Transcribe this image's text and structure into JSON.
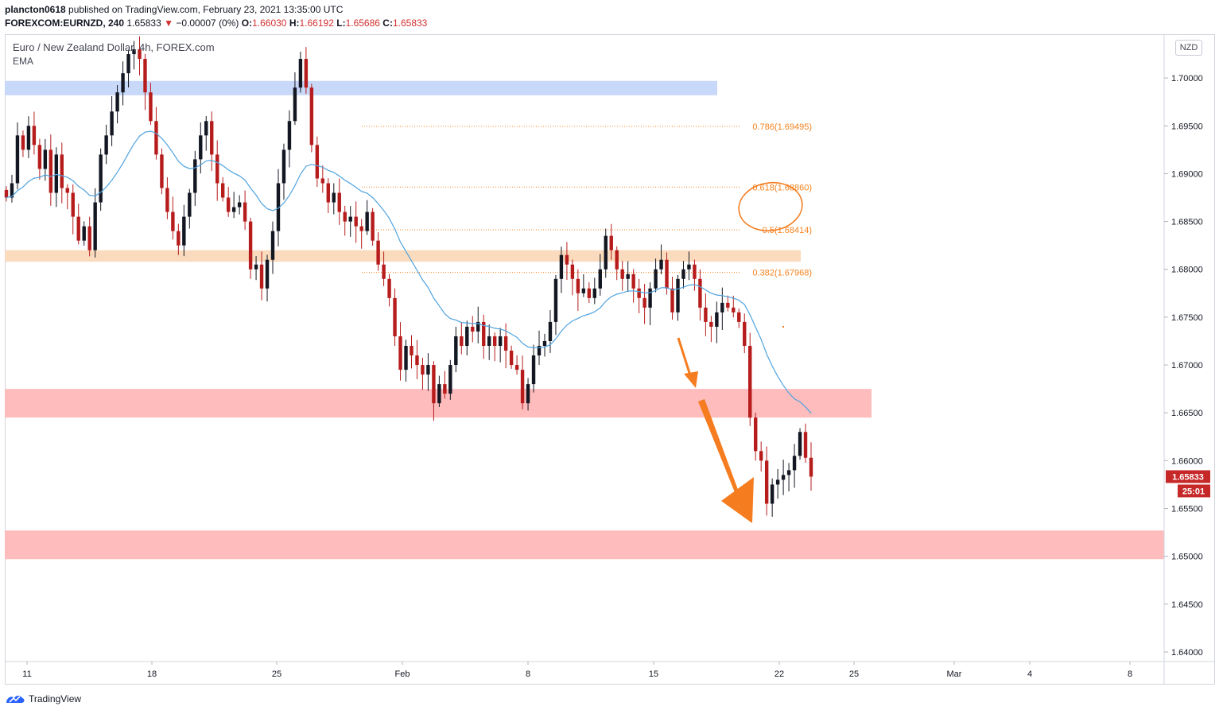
{
  "header": {
    "user": "plancton0618",
    "published": "published on TradingView.com, February 23, 2021 13:35:00 UTC",
    "symbol": "FOREXCOM:EURNZD, 240",
    "price": "1.65833",
    "change_arrow": "▼",
    "change": "−0.00007 (0%)",
    "o_label": "O:",
    "o_value": "1.66030",
    "h_label": "H:",
    "h_value": "1.66192",
    "l_label": "L:",
    "l_value": "1.65686",
    "c_label": "C:",
    "c_value": "1.65833"
  },
  "pane": {
    "title": "Euro / New Zealand Dollar, 4h, FOREX.com",
    "indicator": "EMA",
    "currency": "NZD"
  },
  "price_axis": {
    "ticks": [
      "1.70000",
      "1.69500",
      "1.69000",
      "1.68500",
      "1.68000",
      "1.67500",
      "1.67000",
      "1.66500",
      "1.66000",
      "1.65500",
      "1.65000",
      "1.64500",
      "1.64000"
    ],
    "current_price": "1.65833",
    "countdown": "25:01"
  },
  "time_axis": {
    "ticks": [
      "11",
      "18",
      "25",
      "Feb",
      "8",
      "15",
      "22",
      "25",
      "Mar",
      "4",
      "8"
    ]
  },
  "fib_levels": [
    {
      "label": "0.786(1.69495)",
      "value": 1.69495
    },
    {
      "label": "0.618(1.68860)",
      "value": 1.6886
    },
    {
      "label": "0.5(1.68414)",
      "value": 1.68414
    },
    {
      "label": "0.382(1.67968)",
      "value": 1.67968
    }
  ],
  "zones": [
    {
      "name": "resistance-blue",
      "from": 1.6982,
      "to": 1.6997,
      "color": "#c8d8f8"
    },
    {
      "name": "resistance-orange",
      "from": 1.6808,
      "to": 1.682,
      "color": "#fadbbd"
    },
    {
      "name": "support-red-upper",
      "from": 1.6645,
      "to": 1.6675,
      "color": "#ffbcbd"
    },
    {
      "name": "support-red-lower",
      "from": 1.6497,
      "to": 1.6527,
      "color": "#ffbcbd"
    }
  ],
  "colors": {
    "up": "#131722",
    "down": "#b71c1c",
    "ema": "#4fa3e0",
    "fib": "#f5831f",
    "annotation": "#f57c1f",
    "price_tag": "#c62828"
  },
  "chart_data": {
    "type": "candlestick",
    "symbol": "FOREXCOM:EURNZD",
    "interval": "4h",
    "ylim": [
      1.639,
      1.7045
    ],
    "x_ticks": [
      "11",
      "18",
      "25",
      "Feb",
      "8",
      "15",
      "22",
      "25",
      "Mar",
      "4",
      "8"
    ],
    "close_path": [
      1.6875,
      1.689,
      1.694,
      1.6925,
      1.695,
      1.693,
      1.6905,
      1.6925,
      1.688,
      1.692,
      1.6885,
      1.688,
      1.6855,
      1.683,
      1.6845,
      1.682,
      1.687,
      1.692,
      1.694,
      1.6965,
      1.6985,
      1.7005,
      1.7025,
      1.703,
      1.702,
      1.6985,
      1.6955,
      1.692,
      1.6885,
      1.686,
      1.684,
      1.6825,
      1.6855,
      1.688,
      1.6915,
      1.694,
      1.6955,
      1.692,
      1.689,
      1.6875,
      1.686,
      1.6865,
      1.687,
      1.685,
      1.68,
      1.6805,
      1.678,
      1.681,
      1.684,
      1.689,
      1.6925,
      1.6955,
      1.699,
      1.702,
      1.699,
      1.693,
      1.6895,
      1.689,
      1.687,
      1.688,
      1.686,
      1.685,
      1.6855,
      1.6845,
      1.684,
      1.686,
      1.683,
      1.6805,
      1.679,
      1.677,
      1.673,
      1.6695,
      1.672,
      1.671,
      1.67,
      1.669,
      1.67,
      1.666,
      1.668,
      1.667,
      1.67,
      1.673,
      1.672,
      1.674,
      1.6735,
      1.6745,
      1.672,
      1.673,
      1.672,
      1.673,
      1.6715,
      1.67,
      1.6695,
      1.666,
      1.668,
      1.671,
      1.672,
      1.6725,
      1.6745,
      1.679,
      1.6815,
      1.6805,
      1.679,
      1.6775,
      1.678,
      1.677,
      1.678,
      1.68,
      1.6835,
      1.682,
      1.68,
      1.679,
      1.6795,
      1.678,
      1.677,
      1.676,
      1.678,
      1.68,
      1.681,
      1.678,
      1.6755,
      1.679,
      1.68,
      1.6805,
      1.679,
      1.676,
      1.6745,
      1.674,
      1.6755,
      1.6765,
      1.676,
      1.6755,
      1.6745,
      1.672,
      1.6645,
      1.661,
      1.66,
      1.6555,
      1.6575,
      1.658,
      1.6585,
      1.659,
      1.6605,
      1.663,
      1.6603,
      1.65833
    ],
    "fib_levels": [
      {
        "ratio": "0.786",
        "value": 1.69495
      },
      {
        "ratio": "0.618",
        "value": 1.6886
      },
      {
        "ratio": "0.5",
        "value": 1.68414
      },
      {
        "ratio": "0.382",
        "value": 1.67968
      }
    ],
    "last": {
      "open": 1.6603,
      "high": 1.66192,
      "low": 1.65686,
      "close": 1.65833
    }
  }
}
